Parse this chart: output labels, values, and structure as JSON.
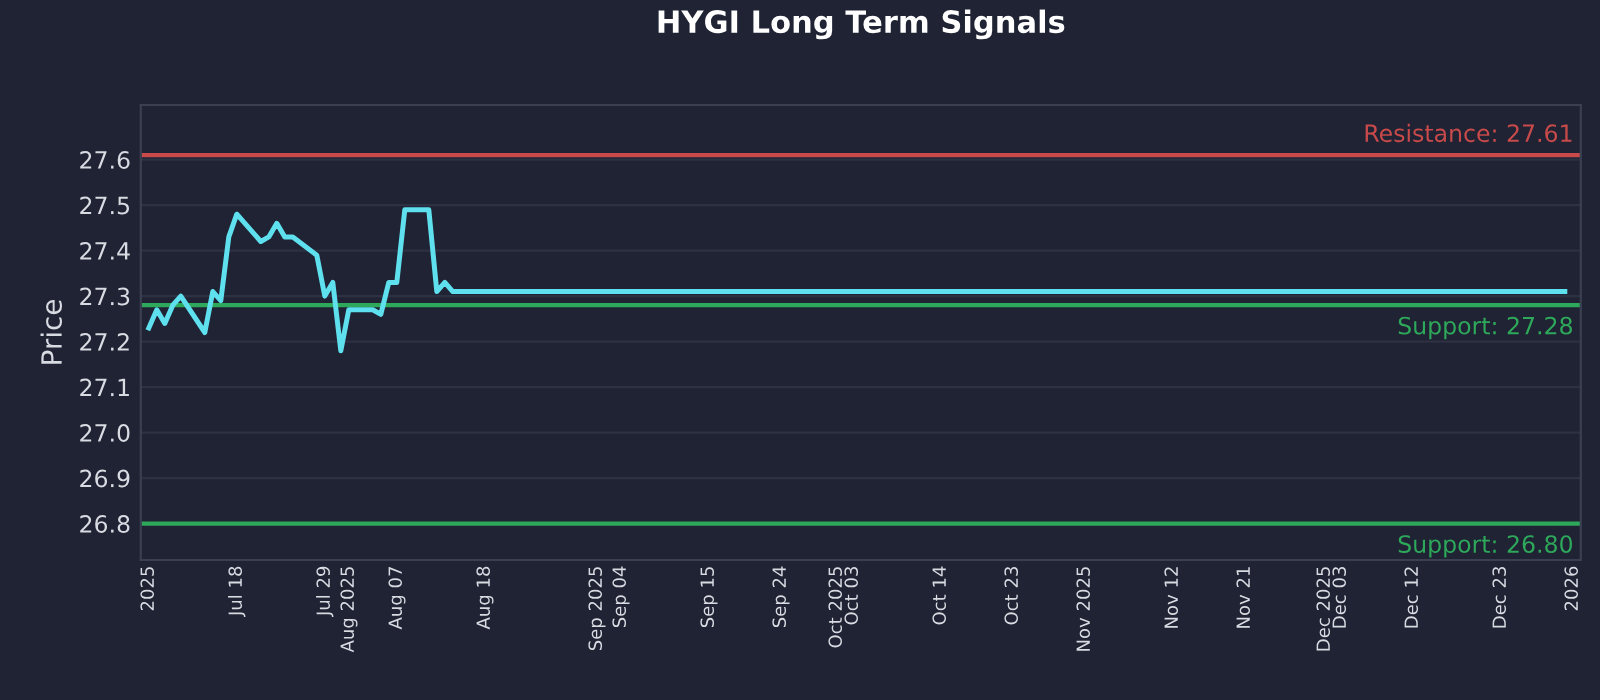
{
  "chart_data": {
    "type": "line",
    "title": "HYGI Long Term Signals",
    "ylabel": "Price",
    "x": [
      "2025-07-07",
      "2025-07-08",
      "2025-07-09",
      "2025-07-10",
      "2025-07-11",
      "2025-07-14",
      "2025-07-15",
      "2025-07-16",
      "2025-07-17",
      "2025-07-18",
      "2025-07-21",
      "2025-07-22",
      "2025-07-23",
      "2025-07-24",
      "2025-07-25",
      "2025-07-28",
      "2025-07-29",
      "2025-07-30",
      "2025-07-31",
      "2025-08-01",
      "2025-08-04",
      "2025-08-05",
      "2025-08-06",
      "2025-08-07",
      "2025-08-08",
      "2025-08-11",
      "2025-08-12",
      "2025-08-13",
      "2025-08-14",
      "2025-12-31"
    ],
    "series": [
      {
        "color": "#5ee0ee",
        "values": [
          27.23,
          27.27,
          27.24,
          27.28,
          27.3,
          27.22,
          27.31,
          27.29,
          27.43,
          27.48,
          27.42,
          27.43,
          27.46,
          27.43,
          27.43,
          27.39,
          27.3,
          27.33,
          27.18,
          27.27,
          27.27,
          27.26,
          27.33,
          27.33,
          27.49,
          27.49,
          27.31,
          27.33,
          27.31,
          27.31
        ]
      }
    ],
    "xlim": [
      "2025-07-06",
      "2026-01-02"
    ],
    "xticks": [
      {
        "value": "2025-07-07",
        "label": "2025"
      },
      {
        "value": "2025-07-18",
        "label": "Jul 18"
      },
      {
        "value": "2025-07-29",
        "label": "Jul 29"
      },
      {
        "value": "2025-08-01",
        "label": "Aug 2025"
      },
      {
        "value": "2025-08-07",
        "label": "Aug 07"
      },
      {
        "value": "2025-08-18",
        "label": "Aug 18"
      },
      {
        "value": "2025-09-01",
        "label": "Sep 2025"
      },
      {
        "value": "2025-09-04",
        "label": "Sep 04"
      },
      {
        "value": "2025-09-15",
        "label": "Sep 15"
      },
      {
        "value": "2025-09-24",
        "label": "Sep 24"
      },
      {
        "value": "2025-10-01",
        "label": "Oct 2025"
      },
      {
        "value": "2025-10-03",
        "label": "Oct 03"
      },
      {
        "value": "2025-10-14",
        "label": "Oct 14"
      },
      {
        "value": "2025-10-23",
        "label": "Oct 23"
      },
      {
        "value": "2025-11-01",
        "label": "Nov 2025"
      },
      {
        "value": "2025-11-12",
        "label": "Nov 12"
      },
      {
        "value": "2025-11-21",
        "label": "Nov 21"
      },
      {
        "value": "2025-12-01",
        "label": "Dec 2025"
      },
      {
        "value": "2025-12-03",
        "label": "Dec 03"
      },
      {
        "value": "2025-12-12",
        "label": "Dec 12"
      },
      {
        "value": "2025-12-23",
        "label": "Dec 23"
      },
      {
        "value": "2026-01-01",
        "label": "2026"
      }
    ],
    "ylim": [
      26.72,
      27.72
    ],
    "yticks": [
      26.8,
      26.9,
      {
        "value": 27.0,
        "label": "27.0"
      },
      27.1,
      27.2,
      27.3,
      27.4,
      27.5,
      27.6
    ],
    "grid": "y",
    "ref_lines": [
      {
        "axis": "y",
        "value": 27.61,
        "label": "Resistance: 27.61",
        "color": "#c94a4a"
      },
      {
        "axis": "y",
        "value": 27.28,
        "label": "Support: 27.28",
        "color": "#2ea85a"
      },
      {
        "axis": "y",
        "value": 26.8,
        "label": "Support: 26.80",
        "color": "#2ea85a"
      }
    ]
  }
}
